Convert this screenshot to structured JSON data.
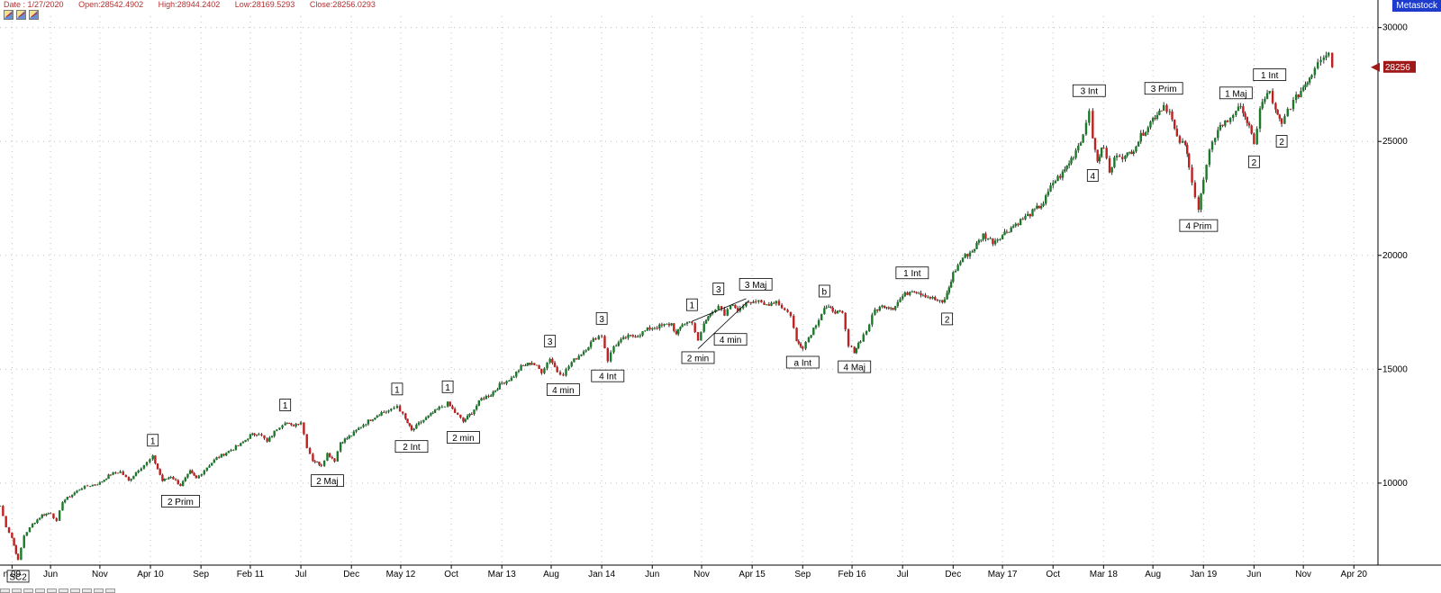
{
  "header": {
    "date": "Date : 1/27/2020",
    "open": "Open:28542.4902",
    "high": "High:28944.2402",
    "low": "Low:28169.5293",
    "close": "Close:28256.0293"
  },
  "brand": "Metastock",
  "toolbar_icons": [
    "chart-tool-icon",
    "chart-tool-icon",
    "chart-tool-icon"
  ],
  "chart_data": {
    "type": "candlestick",
    "y_ticks": [
      {
        "value": 10000,
        "label": "10000"
      },
      {
        "value": 15000,
        "label": "15000"
      },
      {
        "value": 20000,
        "label": "20000"
      },
      {
        "value": 25000,
        "label": "25000"
      },
      {
        "value": 30000,
        "label": "30000"
      }
    ],
    "ylim": [
      6400,
      30500
    ],
    "x_ticks": [
      {
        "x": 2009.1,
        "label": "n 09"
      },
      {
        "x": 2009.42,
        "label": "Jun"
      },
      {
        "x": 2009.83,
        "label": "Nov"
      },
      {
        "x": 2010.25,
        "label": "Apr 10"
      },
      {
        "x": 2010.67,
        "label": "Sep"
      },
      {
        "x": 2011.08,
        "label": "Feb 11"
      },
      {
        "x": 2011.5,
        "label": "Jul"
      },
      {
        "x": 2011.92,
        "label": "Dec"
      },
      {
        "x": 2012.33,
        "label": "May 12"
      },
      {
        "x": 2012.75,
        "label": "Oct"
      },
      {
        "x": 2013.17,
        "label": "Mar 13"
      },
      {
        "x": 2013.58,
        "label": "Aug"
      },
      {
        "x": 2014.0,
        "label": "Jan 14"
      },
      {
        "x": 2014.42,
        "label": "Jun"
      },
      {
        "x": 2014.83,
        "label": "Nov"
      },
      {
        "x": 2015.25,
        "label": "Apr 15"
      },
      {
        "x": 2015.67,
        "label": "Sep"
      },
      {
        "x": 2016.08,
        "label": "Feb 16"
      },
      {
        "x": 2016.5,
        "label": "Jul"
      },
      {
        "x": 2016.92,
        "label": "Dec"
      },
      {
        "x": 2017.33,
        "label": "May 17"
      },
      {
        "x": 2017.75,
        "label": "Oct"
      },
      {
        "x": 2018.17,
        "label": "Mar 18"
      },
      {
        "x": 2018.58,
        "label": "Aug"
      },
      {
        "x": 2019.0,
        "label": "Jan 19"
      },
      {
        "x": 2019.42,
        "label": "Jun"
      },
      {
        "x": 2019.83,
        "label": "Nov"
      },
      {
        "x": 2020.25,
        "label": "Apr 20"
      }
    ],
    "xlim": [
      2009.0,
      2020.45
    ],
    "last_close": 28256.03,
    "last_close_label": "28256",
    "series": [
      [
        2009.0,
        9000
      ],
      [
        2009.05,
        8100
      ],
      [
        2009.1,
        7600
      ],
      [
        2009.15,
        6600
      ],
      [
        2009.2,
        7700
      ],
      [
        2009.27,
        8200
      ],
      [
        2009.35,
        8600
      ],
      [
        2009.42,
        8700
      ],
      [
        2009.47,
        8300
      ],
      [
        2009.52,
        9200
      ],
      [
        2009.6,
        9500
      ],
      [
        2009.68,
        9800
      ],
      [
        2009.75,
        9900
      ],
      [
        2009.83,
        10000
      ],
      [
        2009.92,
        10400
      ],
      [
        2010.0,
        10500
      ],
      [
        2010.07,
        10100
      ],
      [
        2010.15,
        10600
      ],
      [
        2010.22,
        10900
      ],
      [
        2010.27,
        11150
      ],
      [
        2010.35,
        10100
      ],
      [
        2010.42,
        10300
      ],
      [
        2010.5,
        9900
      ],
      [
        2010.58,
        10500
      ],
      [
        2010.63,
        10200
      ],
      [
        2010.72,
        10700
      ],
      [
        2010.8,
        11100
      ],
      [
        2010.9,
        11400
      ],
      [
        2011.0,
        11700
      ],
      [
        2011.08,
        12100
      ],
      [
        2011.15,
        12200
      ],
      [
        2011.22,
        11800
      ],
      [
        2011.3,
        12400
      ],
      [
        2011.37,
        12700
      ],
      [
        2011.42,
        12500
      ],
      [
        2011.5,
        12700
      ],
      [
        2011.55,
        11600
      ],
      [
        2011.6,
        11000
      ],
      [
        2011.67,
        10800
      ],
      [
        2011.72,
        11300
      ],
      [
        2011.78,
        11000
      ],
      [
        2011.83,
        11800
      ],
      [
        2011.92,
        12100
      ],
      [
        2012.0,
        12500
      ],
      [
        2012.08,
        12800
      ],
      [
        2012.17,
        13100
      ],
      [
        2012.25,
        13200
      ],
      [
        2012.3,
        13400
      ],
      [
        2012.37,
        12800
      ],
      [
        2012.42,
        12300
      ],
      [
        2012.5,
        12700
      ],
      [
        2012.58,
        13000
      ],
      [
        2012.65,
        13300
      ],
      [
        2012.72,
        13500
      ],
      [
        2012.78,
        13100
      ],
      [
        2012.85,
        12700
      ],
      [
        2012.92,
        13100
      ],
      [
        2013.0,
        13700
      ],
      [
        2013.08,
        13900
      ],
      [
        2013.17,
        14400
      ],
      [
        2013.25,
        14600
      ],
      [
        2013.33,
        15100
      ],
      [
        2013.42,
        15300
      ],
      [
        2013.5,
        14900
      ],
      [
        2013.57,
        15500
      ],
      [
        2013.63,
        14900
      ],
      [
        2013.68,
        14800
      ],
      [
        2013.75,
        15300
      ],
      [
        2013.85,
        15800
      ],
      [
        2013.95,
        16400
      ],
      [
        2014.0,
        16500
      ],
      [
        2014.05,
        15400
      ],
      [
        2014.1,
        16000
      ],
      [
        2014.2,
        16400
      ],
      [
        2014.3,
        16500
      ],
      [
        2014.4,
        16800
      ],
      [
        2014.5,
        16900
      ],
      [
        2014.58,
        17000
      ],
      [
        2014.62,
        16500
      ],
      [
        2014.67,
        17000
      ],
      [
        2014.75,
        17100
      ],
      [
        2014.8,
        16200
      ],
      [
        2014.85,
        17000
      ],
      [
        2014.92,
        17600
      ],
      [
        2014.97,
        17800
      ],
      [
        2015.02,
        17300
      ],
      [
        2015.07,
        17800
      ],
      [
        2015.15,
        17600
      ],
      [
        2015.2,
        18000
      ],
      [
        2015.28,
        18000
      ],
      [
        2015.35,
        17800
      ],
      [
        2015.45,
        18000
      ],
      [
        2015.52,
        17600
      ],
      [
        2015.57,
        17400
      ],
      [
        2015.62,
        16200
      ],
      [
        2015.67,
        16000
      ],
      [
        2015.72,
        16400
      ],
      [
        2015.78,
        17000
      ],
      [
        2015.85,
        17700
      ],
      [
        2015.92,
        17600
      ],
      [
        2016.0,
        17400
      ],
      [
        2016.05,
        16000
      ],
      [
        2016.1,
        15800
      ],
      [
        2016.15,
        16300
      ],
      [
        2016.2,
        16700
      ],
      [
        2016.27,
        17600
      ],
      [
        2016.35,
        17800
      ],
      [
        2016.42,
        17700
      ],
      [
        2016.5,
        18200
      ],
      [
        2016.58,
        18500
      ],
      [
        2016.67,
        18300
      ],
      [
        2016.75,
        18100
      ],
      [
        2016.83,
        17900
      ],
      [
        2016.87,
        18300
      ],
      [
        2016.92,
        19200
      ],
      [
        2017.0,
        19900
      ],
      [
        2017.08,
        20200
      ],
      [
        2017.17,
        20900
      ],
      [
        2017.25,
        20600
      ],
      [
        2017.33,
        20900
      ],
      [
        2017.42,
        21300
      ],
      [
        2017.5,
        21600
      ],
      [
        2017.58,
        21900
      ],
      [
        2017.67,
        22300
      ],
      [
        2017.75,
        23200
      ],
      [
        2017.83,
        23600
      ],
      [
        2017.92,
        24400
      ],
      [
        2018.0,
        25300
      ],
      [
        2018.05,
        26500
      ],
      [
        2018.08,
        25000
      ],
      [
        2018.12,
        24200
      ],
      [
        2018.17,
        24800
      ],
      [
        2018.22,
        23600
      ],
      [
        2018.28,
        24500
      ],
      [
        2018.35,
        24300
      ],
      [
        2018.42,
        24700
      ],
      [
        2018.5,
        25400
      ],
      [
        2018.58,
        26000
      ],
      [
        2018.67,
        26600
      ],
      [
        2018.72,
        26300
      ],
      [
        2018.78,
        25100
      ],
      [
        2018.85,
        24800
      ],
      [
        2018.88,
        24000
      ],
      [
        2018.93,
        22600
      ],
      [
        2018.96,
        22000
      ],
      [
        2019.0,
        23300
      ],
      [
        2019.05,
        24500
      ],
      [
        2019.12,
        25600
      ],
      [
        2019.2,
        25900
      ],
      [
        2019.27,
        26400
      ],
      [
        2019.33,
        26400
      ],
      [
        2019.38,
        25600
      ],
      [
        2019.42,
        24800
      ],
      [
        2019.47,
        26500
      ],
      [
        2019.55,
        27200
      ],
      [
        2019.6,
        26300
      ],
      [
        2019.65,
        25700
      ],
      [
        2019.7,
        26400
      ],
      [
        2019.77,
        26900
      ],
      [
        2019.83,
        27400
      ],
      [
        2019.9,
        28000
      ],
      [
        2019.95,
        28600
      ],
      [
        2020.0,
        28800
      ],
      [
        2020.04,
        28900
      ],
      [
        2020.07,
        28256
      ]
    ],
    "annotations": [
      {
        "label": "SC2",
        "x": 2009.15,
        "y": 6600,
        "pos": "below"
      },
      {
        "label": "1",
        "x": 2010.27,
        "y": 11150,
        "pos": "above"
      },
      {
        "label": "2 Prim",
        "x": 2010.5,
        "y": 9900,
        "pos": "below"
      },
      {
        "label": "1",
        "x": 2011.37,
        "y": 12700,
        "pos": "above"
      },
      {
        "label": "2 Maj",
        "x": 2011.72,
        "y": 10800,
        "pos": "below"
      },
      {
        "label": "1",
        "x": 2012.3,
        "y": 13400,
        "pos": "above"
      },
      {
        "label": "2 Int",
        "x": 2012.42,
        "y": 12300,
        "pos": "below"
      },
      {
        "label": "1",
        "x": 2012.72,
        "y": 13500,
        "pos": "above"
      },
      {
        "label": "2 min",
        "x": 2012.85,
        "y": 12700,
        "pos": "below"
      },
      {
        "label": "3",
        "x": 2013.57,
        "y": 15500,
        "pos": "above"
      },
      {
        "label": "4 min",
        "x": 2013.68,
        "y": 14800,
        "pos": "below"
      },
      {
        "label": "3",
        "x": 2014.0,
        "y": 16500,
        "pos": "above"
      },
      {
        "label": "4 Int",
        "x": 2014.05,
        "y": 15400,
        "pos": "below"
      },
      {
        "label": "1",
        "x": 2014.75,
        "y": 17100,
        "pos": "above"
      },
      {
        "label": "2 min",
        "x": 2014.8,
        "y": 16200,
        "pos": "below"
      },
      {
        "label": "3",
        "x": 2014.97,
        "y": 17800,
        "pos": "above"
      },
      {
        "label": "4 min",
        "x": 2015.07,
        "y": 17000,
        "pos": "below"
      },
      {
        "label": "3 Maj",
        "x": 2015.28,
        "y": 18000,
        "pos": "above"
      },
      {
        "label": "a Int",
        "x": 2015.67,
        "y": 16000,
        "pos": "below"
      },
      {
        "label": "b",
        "x": 2015.85,
        "y": 17700,
        "pos": "above"
      },
      {
        "label": "4 Maj",
        "x": 2016.1,
        "y": 15800,
        "pos": "below"
      },
      {
        "label": "1 Int",
        "x": 2016.58,
        "y": 18500,
        "pos": "above"
      },
      {
        "label": "2",
        "x": 2016.87,
        "y": 17900,
        "pos": "below"
      },
      {
        "label": "3 Int",
        "x": 2018.05,
        "y": 26500,
        "pos": "above"
      },
      {
        "label": "4",
        "x": 2018.08,
        "y": 24200,
        "pos": "below"
      },
      {
        "label": "3 Prim",
        "x": 2018.67,
        "y": 26600,
        "pos": "above"
      },
      {
        "label": "4 Prim",
        "x": 2018.96,
        "y": 22000,
        "pos": "below"
      },
      {
        "label": "1 Maj",
        "x": 2019.27,
        "y": 26400,
        "pos": "above"
      },
      {
        "label": "2",
        "x": 2019.42,
        "y": 24800,
        "pos": "below"
      },
      {
        "label": "1 Int",
        "x": 2019.55,
        "y": 27200,
        "pos": "above"
      },
      {
        "label": "2",
        "x": 2019.65,
        "y": 25700,
        "pos": "below"
      }
    ],
    "trendlines": [
      {
        "from": [
          2014.8,
          15900
        ],
        "to": [
          2015.22,
          18000
        ]
      },
      {
        "from": [
          2014.75,
          17100
        ],
        "to": [
          2015.2,
          18100
        ]
      }
    ],
    "colors": {
      "up": "#1a7a2a",
      "down": "#c02020",
      "wick": "#000000",
      "grid": "#bfbfbf",
      "last_marker": "#a01818"
    }
  }
}
